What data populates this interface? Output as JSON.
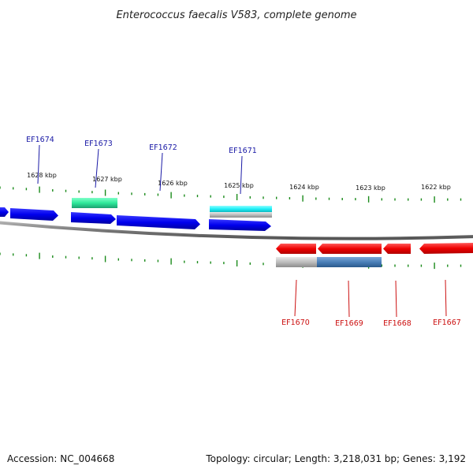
{
  "title": "Enterococcus faecalis V583, complete genome",
  "footer": {
    "accession": "Accession: NC_004668",
    "summary": "Topology: circular; Length: 3,218,031 bp; Genes: 3,192"
  },
  "colors": {
    "forward_label": "#1a1aa6",
    "reverse_label": "#cc1111",
    "tick": "#1a8a1a",
    "backbone": "#808080"
  },
  "kbp_labels": [
    "1628 kbp",
    "1627 kbp",
    "1626 kbp",
    "1625 kbp",
    "1624 kbp",
    "1623 kbp",
    "1622 kbp"
  ],
  "genes": {
    "forward": [
      "EF1674",
      "EF1673",
      "EF1672",
      "EF1671"
    ],
    "reverse": [
      "EF1670",
      "EF1669",
      "EF1668",
      "EF1667"
    ]
  }
}
